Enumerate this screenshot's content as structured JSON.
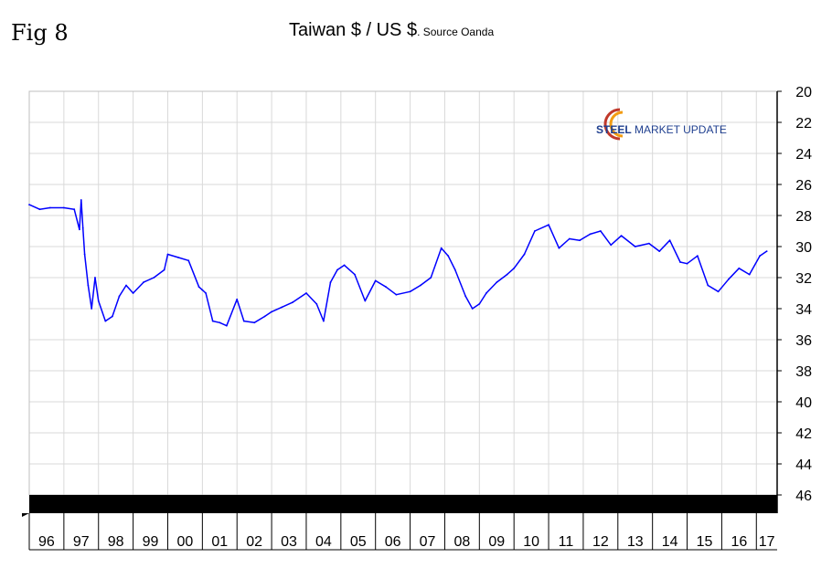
{
  "figure_label": "Fig 8",
  "title": "Taiwan $ / US $",
  "subtitle": ". Source Oanda",
  "logo": {
    "part1": "STEEL",
    "part2": " MARKET UPDATE",
    "colors": {
      "text": "#1f3f8f",
      "arc1": "#c0392b",
      "arc2": "#f39c12"
    }
  },
  "colors": {
    "line": "#0000ff",
    "grid": "#d9d9d9",
    "axis": "#000000",
    "band": "#000000"
  },
  "chart_data": {
    "type": "line",
    "title": "Taiwan $ / US $",
    "subtitle": ". Source Oanda",
    "xlabel": "",
    "ylabel": "",
    "y_axis_position": "right",
    "y_inverted": true,
    "ylim": [
      46,
      20
    ],
    "yticks": [
      20,
      22,
      24,
      26,
      28,
      30,
      32,
      34,
      36,
      38,
      40,
      42,
      44,
      46
    ],
    "xlim": [
      1996,
      2017.6
    ],
    "xtick_labels": [
      "96",
      "97",
      "98",
      "99",
      "00",
      "01",
      "02",
      "03",
      "04",
      "05",
      "06",
      "07",
      "08",
      "09",
      "10",
      "11",
      "12",
      "13",
      "14",
      "15",
      "16",
      "17"
    ],
    "grid": true,
    "series": [
      {
        "color": "#0000ff",
        "x": [
          1996.0,
          1996.3,
          1996.6,
          1997.0,
          1997.3,
          1997.45,
          1997.5,
          1997.55,
          1997.6,
          1997.7,
          1997.8,
          1997.9,
          1998.0,
          1998.2,
          1998.4,
          1998.6,
          1998.8,
          1999.0,
          1999.3,
          1999.6,
          1999.9,
          2000.0,
          2000.3,
          2000.6,
          2000.9,
          2001.0,
          2001.1,
          2001.3,
          2001.5,
          2001.7,
          2002.0,
          2002.2,
          2002.5,
          2002.8,
          2003.0,
          2003.3,
          2003.6,
          2004.0,
          2004.3,
          2004.5,
          2004.7,
          2004.9,
          2005.1,
          2005.4,
          2005.7,
          2006.0,
          2006.3,
          2006.6,
          2007.0,
          2007.3,
          2007.6,
          2007.9,
          2008.1,
          2008.3,
          2008.6,
          2008.8,
          2009.0,
          2009.2,
          2009.5,
          2009.8,
          2010.0,
          2010.3,
          2010.6,
          2011.0,
          2011.3,
          2011.6,
          2011.9,
          2012.2,
          2012.5,
          2012.8,
          2013.1,
          2013.5,
          2013.9,
          2014.2,
          2014.5,
          2014.8,
          2015.0,
          2015.3,
          2015.6,
          2015.9,
          2016.2,
          2016.5,
          2016.8,
          2017.1,
          2017.3
        ],
        "values": [
          27.3,
          27.6,
          27.5,
          27.5,
          27.6,
          28.9,
          27.0,
          28.8,
          30.5,
          32.5,
          34.0,
          32.0,
          33.5,
          34.8,
          34.5,
          33.2,
          32.5,
          33.0,
          32.3,
          32.0,
          31.5,
          30.5,
          30.7,
          30.9,
          32.6,
          32.8,
          33.0,
          34.8,
          34.9,
          35.1,
          33.4,
          34.8,
          34.9,
          34.5,
          34.2,
          33.9,
          33.6,
          33.0,
          33.7,
          34.8,
          32.3,
          31.5,
          31.2,
          31.8,
          33.5,
          32.2,
          32.6,
          33.1,
          32.9,
          32.5,
          32.0,
          30.1,
          30.6,
          31.5,
          33.2,
          34.0,
          33.7,
          33.0,
          32.3,
          31.8,
          31.4,
          30.5,
          29.0,
          28.6,
          30.1,
          29.5,
          29.6,
          29.2,
          29.0,
          29.9,
          29.3,
          30.0,
          29.8,
          30.3,
          29.6,
          31.0,
          31.1,
          30.6,
          32.5,
          32.9,
          32.1,
          31.4,
          31.8,
          30.6,
          30.3
        ]
      }
    ]
  }
}
